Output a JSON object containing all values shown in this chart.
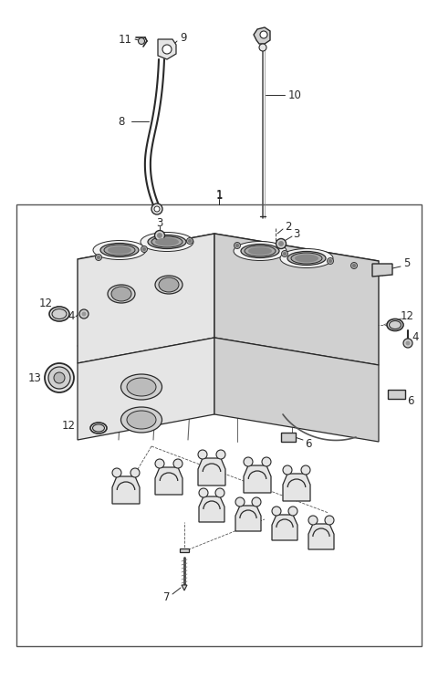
{
  "bg_color": "#ffffff",
  "lc": "#2a2a2a",
  "gray1": "#f2f2f2",
  "gray2": "#e5e5e5",
  "gray3": "#d0d0d0",
  "gray4": "#b8b8b8",
  "fig_w": 4.8,
  "fig_h": 7.44,
  "dpi": 100
}
